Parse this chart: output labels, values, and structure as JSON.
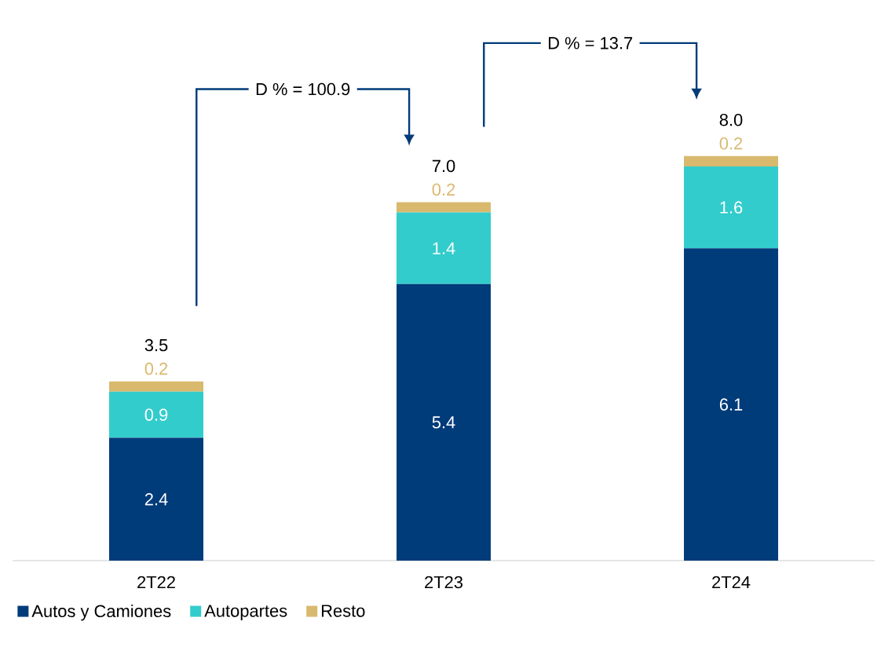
{
  "chart_data": {
    "type": "bar",
    "stacked": true,
    "data_labels": true,
    "legend": "bottom",
    "categories": [
      "2T22",
      "2T23",
      "2T24"
    ],
    "series": [
      {
        "name": "Autos y Camiones",
        "color": "#003b7a",
        "values": [
          2.4,
          5.4,
          6.1
        ]
      },
      {
        "name": "Autopartes",
        "color": "#33cccc",
        "values": [
          0.9,
          1.4,
          1.6
        ]
      },
      {
        "name": "Resto",
        "color": "#d9b96e",
        "values": [
          0.2,
          0.2,
          0.2
        ]
      }
    ],
    "totals": [
      "3.5",
      "7.0",
      "8.0"
    ],
    "annotations": [
      "D % = 100.9",
      "D % = 13.7"
    ]
  }
}
